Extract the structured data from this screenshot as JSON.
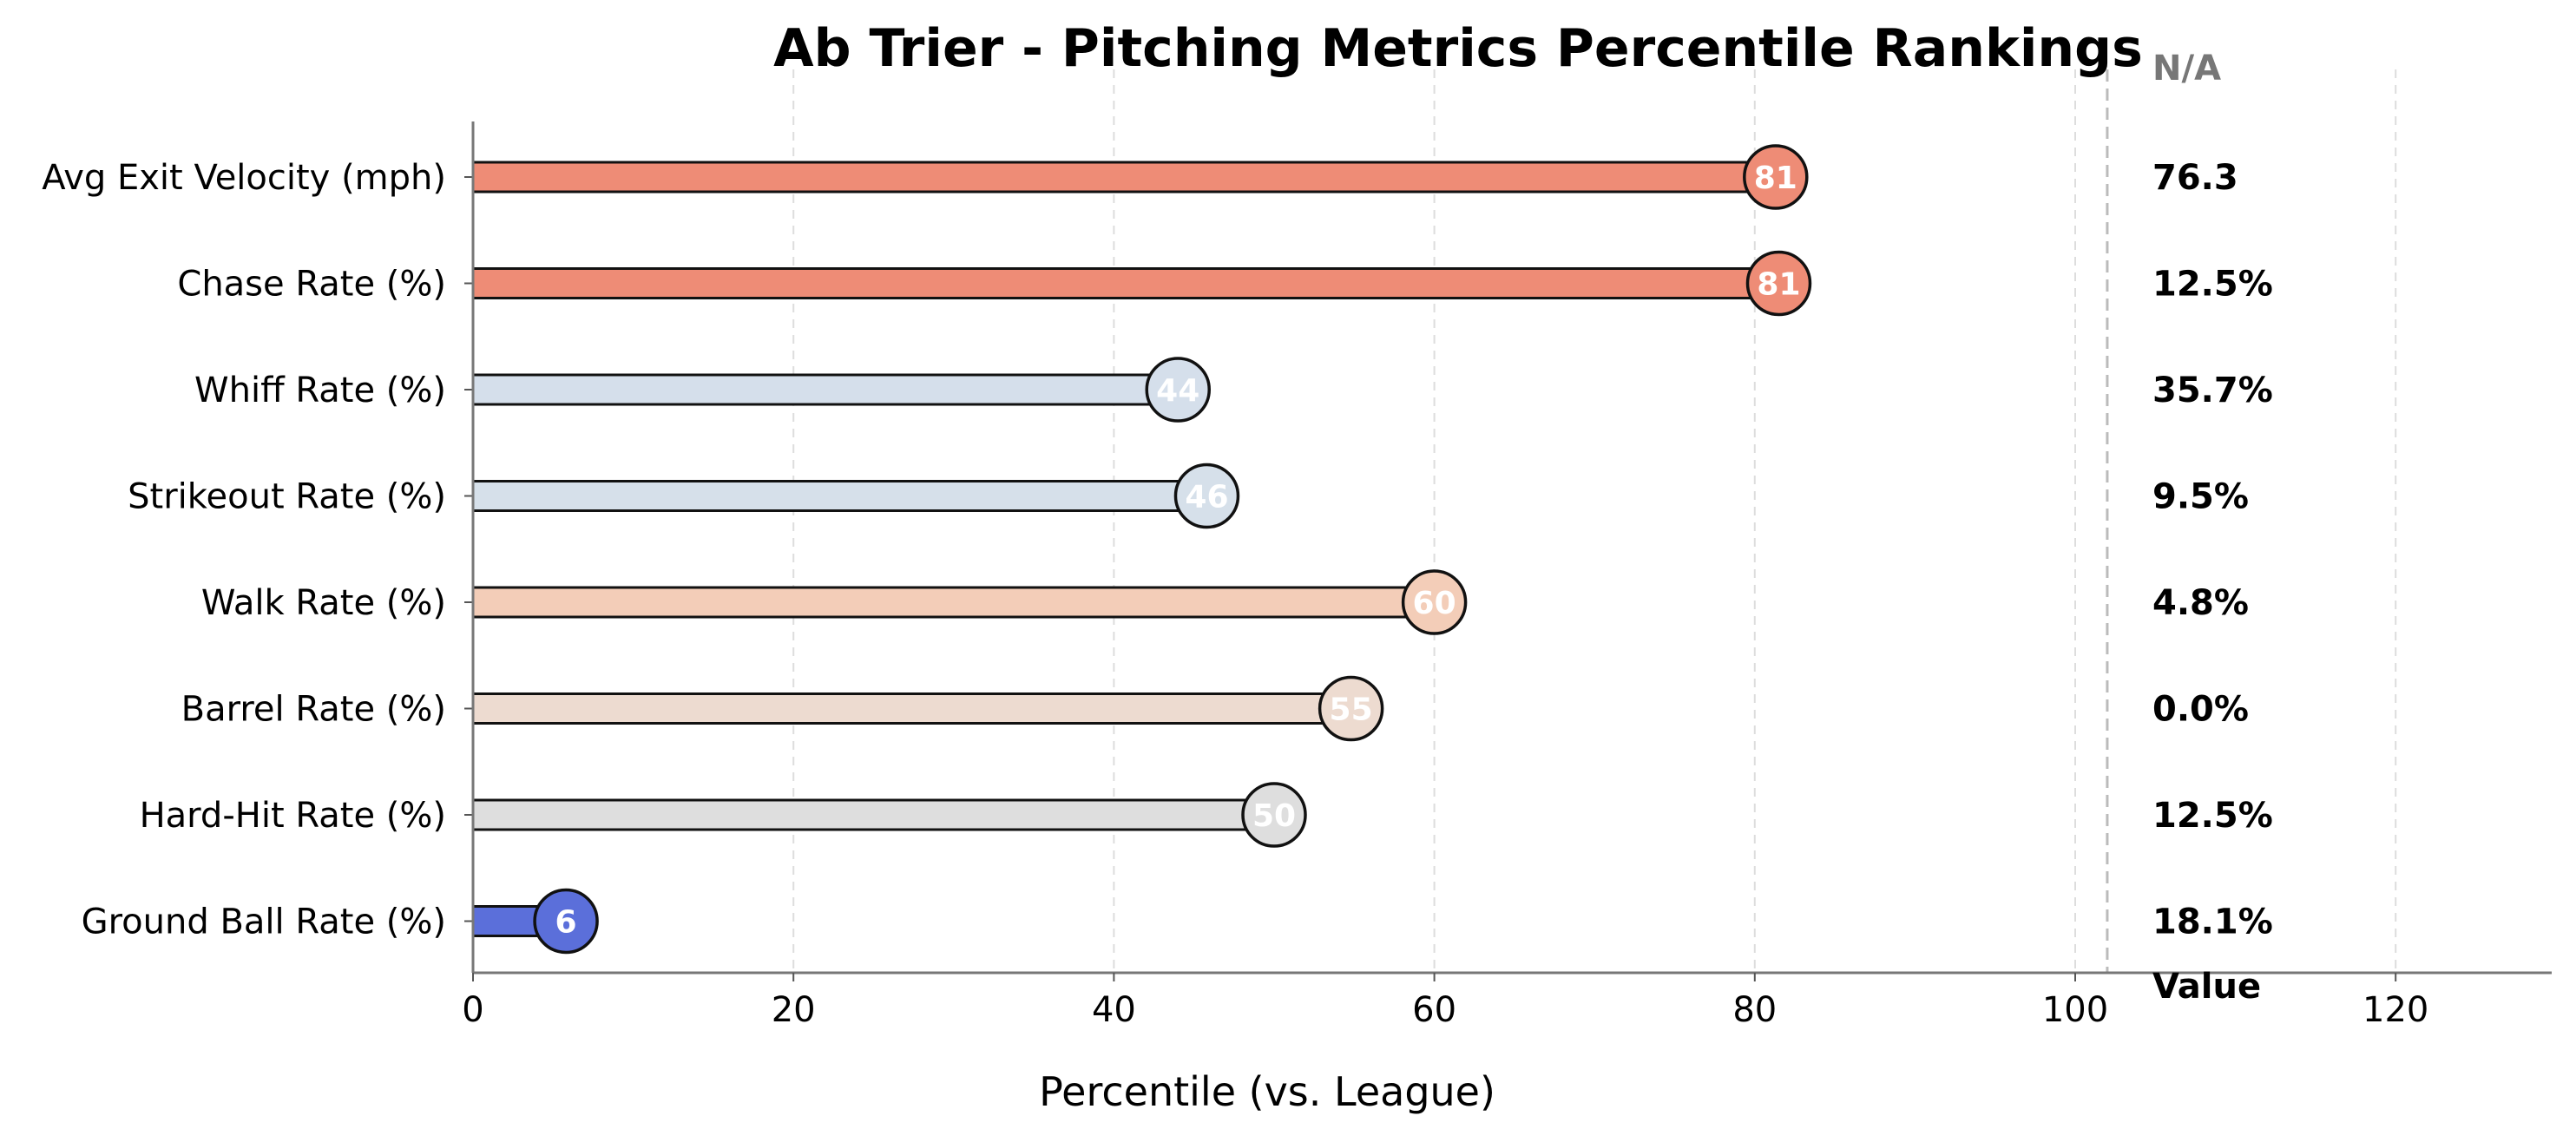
{
  "chart_data": {
    "type": "bar",
    "title": "Ab Trier - Pitching Metrics Percentile Rankings",
    "xlabel": "Percentile (vs. League)",
    "ylabel": "",
    "xlim": [
      0,
      130
    ],
    "xticks": [
      0,
      20,
      40,
      60,
      80,
      100,
      120
    ],
    "reference_line": 102,
    "grid": "x-dashed",
    "raw_values_header": "Value",
    "raw_values_top_label": "N/A",
    "categories": [
      "Avg Exit Velocity (mph)",
      "Chase Rate (%)",
      "Whiff Rate (%)",
      "Strikeout Rate (%)",
      "Walk Rate (%)",
      "Barrel Rate (%)",
      "Hard-Hit Rate (%)",
      "Ground Ball Rate (%)"
    ],
    "values": [
      81.3,
      81.5,
      44.0,
      45.8,
      60.0,
      54.8,
      50.0,
      5.8
    ],
    "labels": [
      "81",
      "81",
      "44",
      "46",
      "60",
      "55",
      "50",
      "6"
    ],
    "raw_values": [
      "76.3",
      "12.5%",
      "35.7%",
      "9.5%",
      "4.8%",
      "0.0%",
      "12.5%",
      "18.1%"
    ],
    "colors": [
      "#ee8c76",
      "#ee8c76",
      "#d5dfeb",
      "#d6e0ea",
      "#f3cdb8",
      "#eddbd0",
      "#dedede",
      "#5b6fda"
    ]
  }
}
